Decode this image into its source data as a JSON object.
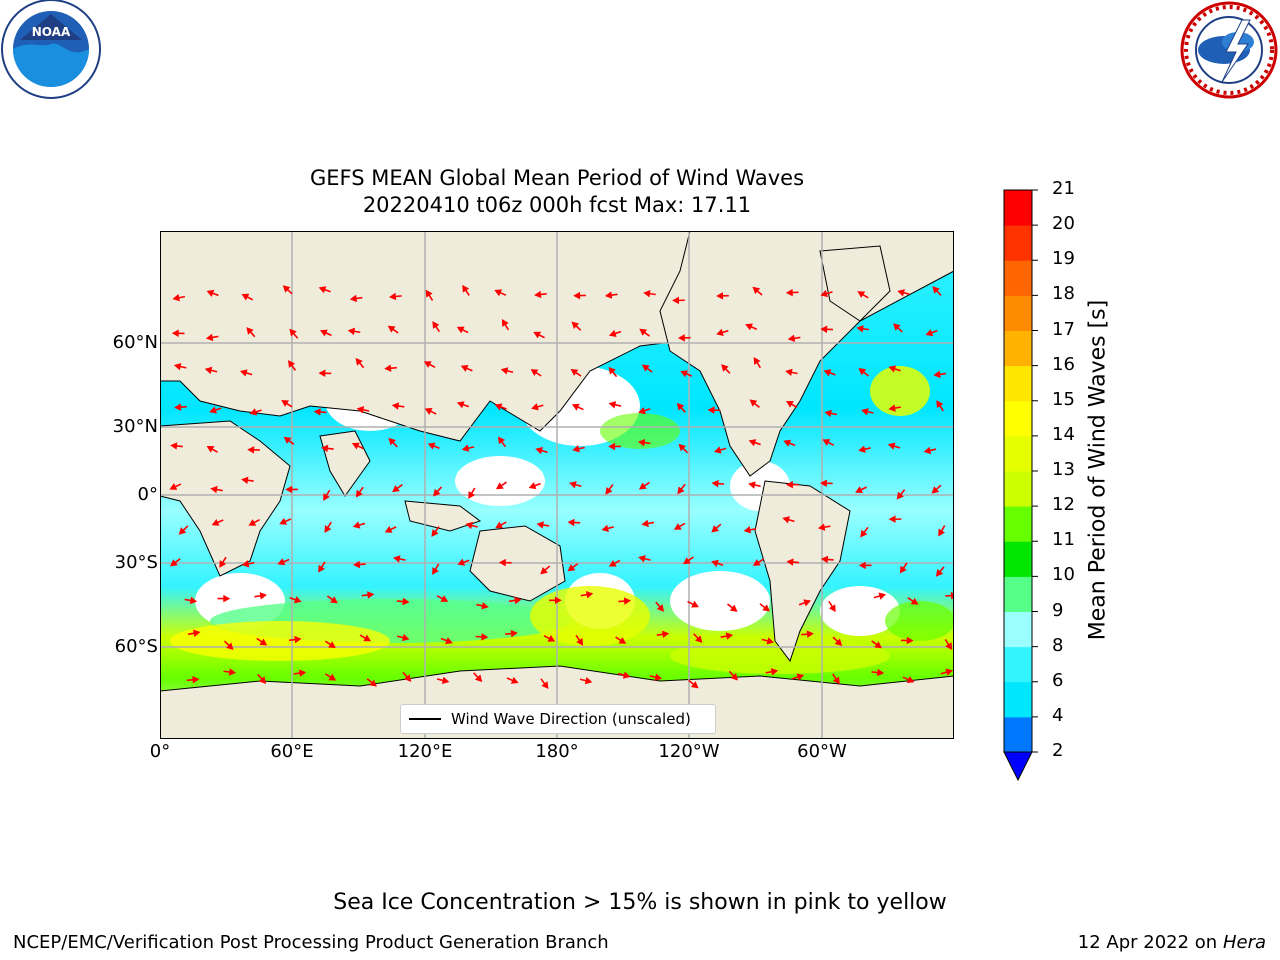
{
  "header": {
    "title_line1": "GEFS MEAN Global Mean Period of Wind Waves",
    "title_line2": "20220410 t06z 000h fcst   Max: 17.11"
  },
  "logos": {
    "left": {
      "icon": "noaa-logo-icon",
      "text": "NOAA"
    },
    "right": {
      "icon": "nws-logo-icon"
    }
  },
  "map": {
    "lat_labels": [
      "60°N",
      "30°N",
      "0°",
      "30°S",
      "60°S"
    ],
    "lon_labels": [
      "0°",
      "60°E",
      "120°E",
      "180°",
      "120°W",
      "60°W"
    ],
    "legend_label": "Wind Wave Direction (unscaled)",
    "colors": {
      "land": "#efecdc",
      "grid": "#b0b0b0",
      "arrow": "#ff0000"
    }
  },
  "colorbar": {
    "title": "Mean Period of Wind Waves [s]",
    "ticks": [
      "2",
      "4",
      "6",
      "8",
      "9",
      "10",
      "11",
      "12",
      "13",
      "14",
      "15",
      "16",
      "17",
      "18",
      "19",
      "20",
      "21"
    ],
    "colors": [
      "#0077ff",
      "#00e6ff",
      "#33f3ff",
      "#99ffff",
      "#55ff88",
      "#00e600",
      "#66ff00",
      "#ccff00",
      "#e6ff00",
      "#ffff00",
      "#ffe600",
      "#ffb300",
      "#ff8c00",
      "#ff6600",
      "#ff3300",
      "#ff0000"
    ],
    "extend_color": "#0000ff"
  },
  "footer": {
    "ice_note": "Sea Ice Concentration > 15% is shown in pink to yellow",
    "credit": "NCEP/EMC/Verification Post Processing Product Generation Branch",
    "date_prefix": "12 Apr 2022 on ",
    "date_machine": "Hera"
  }
}
